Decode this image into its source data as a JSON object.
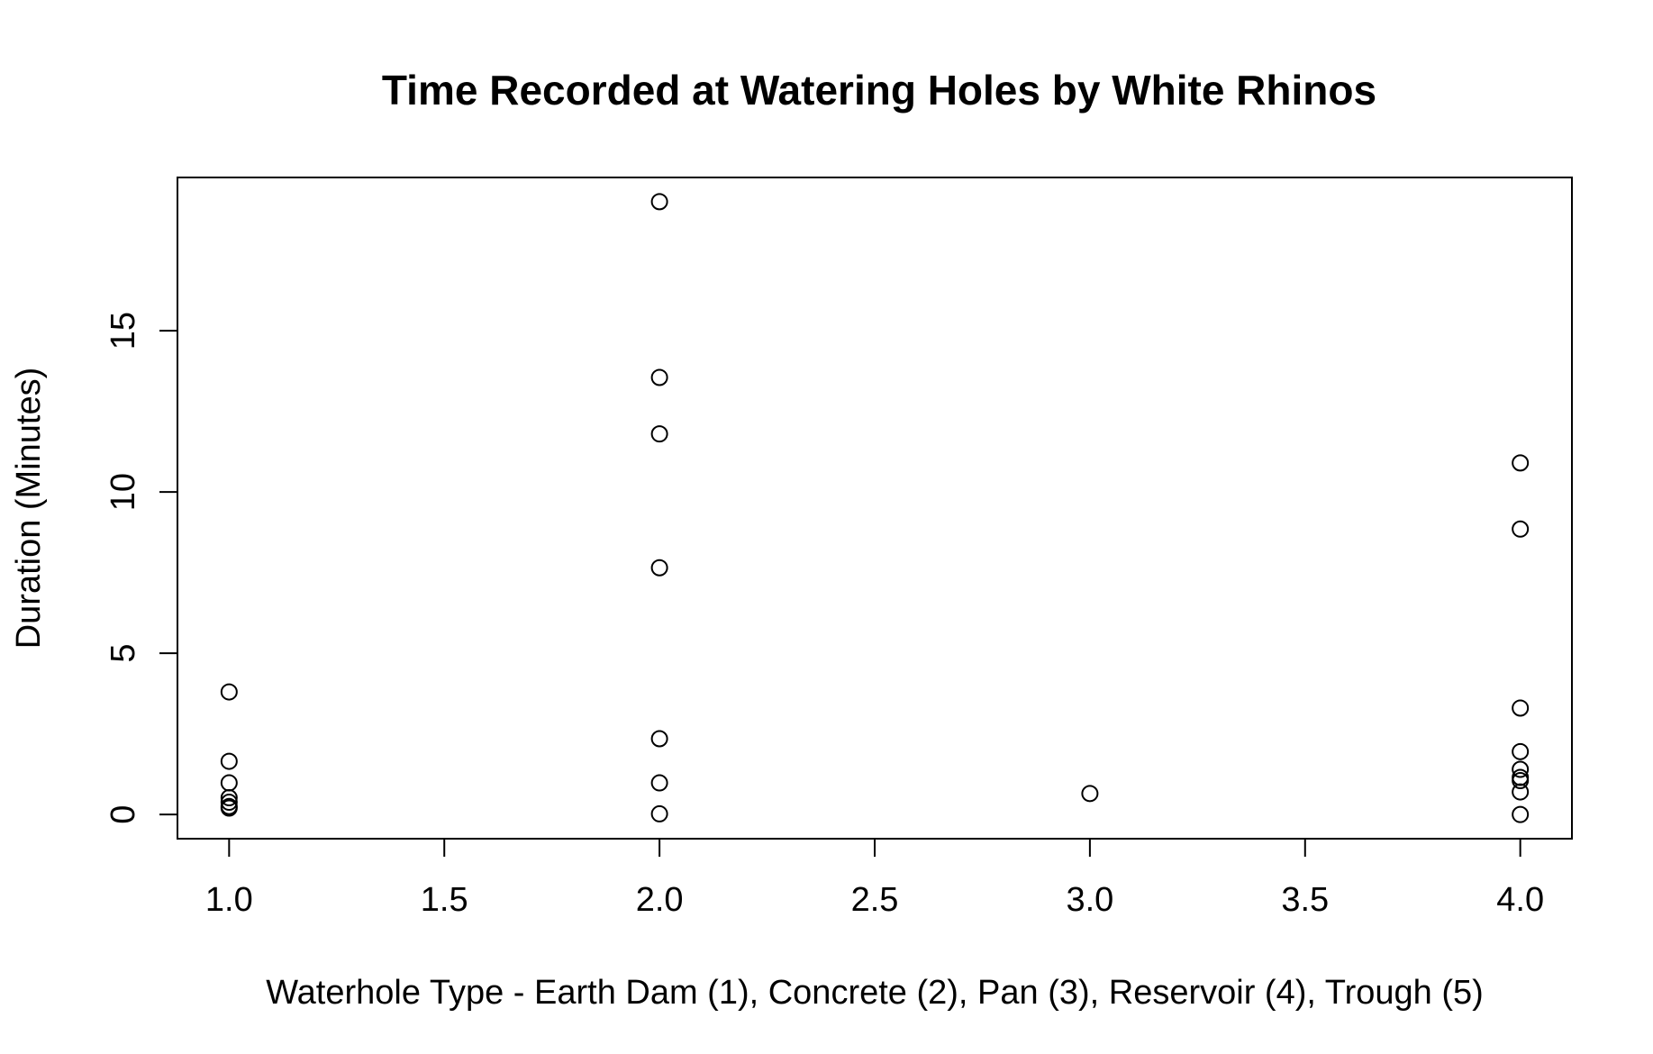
{
  "chart_data": {
    "type": "scatter",
    "title": "Time Recorded at Watering Holes by White Rhinos",
    "xlabel": "Waterhole Type - Earth Dam (1), Concrete (2), Pan (3), Reservoir (4), Trough (5)",
    "ylabel": "Duration (Minutes)",
    "xlim": [
      0.88,
      4.12
    ],
    "ylim": [
      -0.75,
      19.75
    ],
    "x_ticks": [
      1.0,
      1.5,
      2.0,
      2.5,
      3.0,
      3.5,
      4.0
    ],
    "x_tick_labels": [
      "1.0",
      "1.5",
      "2.0",
      "2.5",
      "3.0",
      "3.5",
      "4.0"
    ],
    "y_ticks": [
      0,
      5,
      10,
      15
    ],
    "y_tick_labels": [
      "0",
      "5",
      "10",
      "15"
    ],
    "grid": false,
    "point_style": "open-circle",
    "series": [
      {
        "x": [
          1,
          1,
          1,
          1,
          1,
          1,
          1,
          2,
          2,
          2,
          2,
          2,
          2,
          2,
          3,
          4,
          4,
          4,
          4,
          4,
          4,
          4,
          4,
          4
        ],
        "y": [
          3.8,
          1.65,
          0.98,
          0.52,
          0.38,
          0.25,
          0.2,
          19.0,
          13.55,
          11.8,
          7.65,
          2.35,
          0.98,
          0.02,
          0.65,
          10.9,
          8.85,
          3.3,
          1.95,
          1.4,
          1.15,
          1.05,
          0.7,
          0.0
        ]
      }
    ]
  }
}
